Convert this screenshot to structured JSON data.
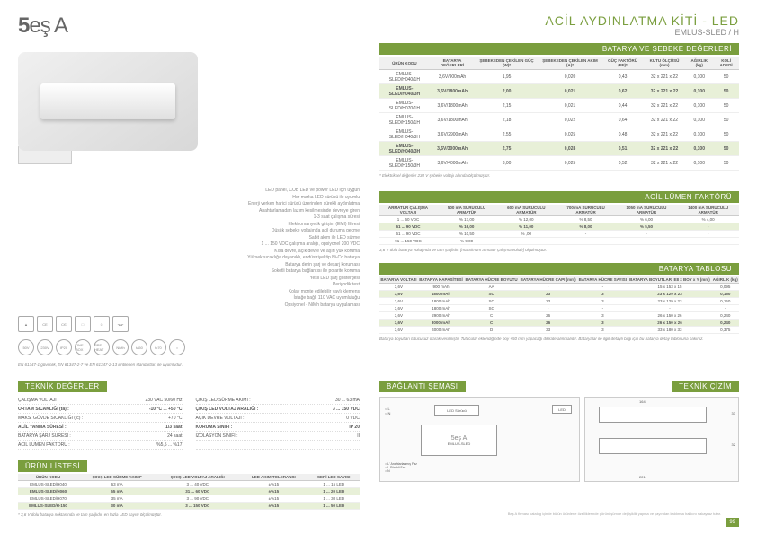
{
  "logo_prefix": "5",
  "logo_text": "eş A",
  "title": "ACİL AYDINLATMA KİTİ - LED",
  "subtitle": "EMLUS-SLED / H",
  "sections": {
    "batarya_sebeke": "BATARYA VE ŞEBEKE DEĞERLERİ",
    "lumen": "ACİL LÜMEN FAKTÖRÜ",
    "batarya_tablo": "BATARYA TABLOSU",
    "teknik": "TEKNİK DEĞERLER",
    "urun": "ÜRÜN LİSTESİ",
    "baglanti": "BAĞLANTI ŞEMASI",
    "cizim": "TEKNİK ÇİZİM"
  },
  "desc": [
    "LED panel, COB LED ve power LED için uygun",
    "Her marka LED sürücü ile uyumlu",
    "Enerji verken harici sürücü üzerinden sürekli aydınlatma",
    "Anahtarlamadan lazım kesilmesinde devreye giren",
    "1-3 saat çalışma süresi",
    "Elektromanyetik girişim (EMI) filtresi",
    "Düşük şebeke voltajında acil duruma geçme",
    "Sabit akım ile LED sürme",
    "1 ... 150 VDC çalışma aralığı, opsiyonel 200 VDC",
    "Kısa devre, açık devre ve aşırı yük koruma",
    "Yüksek sıcaklığa dayanıklı, endüstriyel tip Ni-Cd batarya",
    "Batarya derin şarj ve deşarj koruması",
    "Soketli batarya bağlantısı ile polarite koruma",
    "Yeşil LED şarj göstergesi",
    "Periyodik test",
    "Kolay monte edilebilir yaylı klemens",
    "İstağe bağlı 110 VAC uyumluluğu",
    "Opsiyonel - NiMh batarya uygulaması"
  ],
  "cert_note": "EN 61347-1 güvenlik, EN 61347-2-7 ve EN 61347-2-13 ilintilenen standartları ile uyumludur.",
  "bs_head": [
    "ÜRÜN KODU",
    "BATARYA DEĞERLERİ",
    "ŞEBEKEDEN ÇEKİLEN GÜÇ (W)*",
    "ŞEBEKEDEN ÇEKİLEN AKIM (A)*",
    "GÜÇ FAKTÖRÜ (PF)*",
    "KUTU ÖLÇÜSÜ (mm)",
    "AĞIRLIK (kg)",
    "KOLİ ADEDİ"
  ],
  "bs_rows": [
    [
      "EMLUS-SLED/H040/1H",
      "3,6V/900mAh",
      "1,95",
      "0,020",
      "0,43",
      "32 x 221 x 22",
      "0,100",
      "50"
    ],
    [
      "EMLUS-SLED/H040/3H",
      "3,6V/1800mAh",
      "2,00",
      "0,021",
      "0,62",
      "32 x 221 x 22",
      "0,100",
      "50"
    ],
    [
      "EMLUS-SLED/H070/1H",
      "3,6V/1800mAh",
      "2,15",
      "0,021",
      "0,44",
      "32 x 221 x 22",
      "0,100",
      "50"
    ],
    [
      "EMLUS-SLED/H150/1H",
      "3,6V/1800mAh",
      "2,18",
      "0,022",
      "0,64",
      "32 x 221 x 22",
      "0,100",
      "50"
    ],
    [
      "EMLUS-SLED/H040/3H",
      "3,6V/2900mAh",
      "2,55",
      "0,025",
      "0,48",
      "32 x 221 x 22",
      "0,100",
      "50"
    ],
    [
      "EMLUS-SLED/H040/3H",
      "3,6V/3000mAh",
      "2,75",
      "0,028",
      "0,51",
      "32 x 221 x 22",
      "0,100",
      "50"
    ],
    [
      "EMLUS-SLED/H150/3H",
      "3,6V/4000mAh",
      "3,00",
      "0,025",
      "0,52",
      "32 x 221 x 22",
      "0,100",
      "50"
    ]
  ],
  "bs_hl": [
    1,
    5
  ],
  "bs_note": "* Elektriksel değerler 230 V şebeke voltajı altında ölçülmüştür.",
  "lf_head": [
    "ARMATÜR ÇALIŞMA VOLTAJI",
    "500 mA SÜRÜCÜLÜ ARMATÜR",
    "600 mA SÜRÜCÜLÜ ARMATÜR",
    "700 mA SÜRÜCÜLÜ ARMATÜR",
    "1050 mA SÜRÜCÜLÜ ARMATÜR",
    "1400 mA SÜRÜCÜLÜ ARMATÜR"
  ],
  "lf_rows": [
    [
      "1 ... 60 VDC",
      "% 17,00",
      "% 12,00",
      "% 8,50",
      "% 6,00",
      "% 4,00"
    ],
    [
      "61 ... 90 VDC",
      "% 16,00",
      "% 11,00",
      "% 8,00",
      "% 5,50",
      "-"
    ],
    [
      "61 ... 90 VDC",
      "% 10,50",
      "% ,00",
      "-",
      "-",
      "-"
    ],
    [
      "91 ... 150 VDC",
      "% 9,00",
      "-",
      "-",
      "-",
      "-"
    ]
  ],
  "lf_hl": [
    1
  ],
  "lf_note": "3,6 V dolu batarya voltajında ve tam şarjlıdır. [maksimum armatür çalışma voltajı] ölçülmüştür.",
  "bt_head": [
    "BATARYA VOLTAJI",
    "BATARYA KAPASİTESİ",
    "BATARYA HÜCRE BOYUTU",
    "BATARYA HÜCRE ÇAPI (mm)",
    "BATARYA HÜCRE SAYISI",
    "BATARYA BOYUTLARI E8 x BOY x Y (mm)",
    "AĞIRLIK (kg)"
  ],
  "bt_rows": [
    [
      "3,6V",
      "900 mAh",
      "AA",
      "-",
      "-",
      "15 x 153 x 15",
      "0,095"
    ],
    [
      "3,6V",
      "1800 mAh",
      "SC",
      "23",
      "3",
      "23 x 129 x 23",
      "0,150"
    ],
    [
      "3,6V",
      "1800 mAh",
      "SC",
      "23",
      "3",
      "23 x 129 x 23",
      "0,150"
    ],
    [
      "3,6V",
      "1800 mAh",
      "SC",
      "-",
      "-",
      "-",
      "-"
    ],
    [
      "3,6V",
      "2900 mAh",
      "C",
      "26",
      "3",
      "26 x 150 x 26",
      "0,240"
    ],
    [
      "3,6V",
      "3000 mAh",
      "C",
      "26",
      "3",
      "26 x 150 x 26",
      "0,240"
    ],
    [
      "3,6V",
      "4000 mAh",
      "D",
      "33",
      "3",
      "33 x 180 x 33",
      "0,375"
    ]
  ],
  "bt_hl": [
    1,
    5
  ],
  "bt_note": "Batarya boyutları tutucusuz olarak verilmiştir. Tutucular eklendiğinde boy +50 mm yapacağı dikkate alınmalıdır. Bataryalar ile ilgili detaylı bilgi için bu batarya detay tablosuna bakınız.",
  "td_left": [
    [
      "ÇALIŞMA VOLTAJI :",
      "230 VAC 50/60 Hz"
    ],
    [
      "ORTAM SICAKLIĞI (ta) :",
      "-10 °C ... +50 °C"
    ],
    [
      "MAKS. GÖVDE SICAKLIĞI (tc) :",
      "+70 °C"
    ],
    [
      "ACİL YANMA SÜRESİ :",
      "1/3 saat"
    ],
    [
      "BATARYA ŞARJ SÜRESİ :",
      "24 saat"
    ],
    [
      "ACİL LÜMEN FAKTÖRÜ :",
      "%5,5 ... %17"
    ]
  ],
  "td_right": [
    [
      "ÇIKIŞ LED SÜRME AKIMI :",
      "30 ... 63 mA"
    ],
    [
      "ÇIKIŞ LED VOLTAJ ARALIĞI :",
      "3 ... 150 VDC"
    ],
    [
      "AÇIK DEVRE VOLTAJI :",
      "0 VDC"
    ],
    [
      "KORUMA SINIFI :",
      "IP 20"
    ],
    [
      "İZOLASYON SINIFI :",
      "II"
    ]
  ],
  "td_hl_left": [
    1,
    3
  ],
  "td_hl_right": [
    1,
    3
  ],
  "ul_head": [
    "ÜRÜN KODU",
    "ÇIKIŞ LED SÜRME AKIMI*",
    "ÇIKIŞ LED VOLTAJ ARALIĞI",
    "LED AKIM TOLERANSI",
    "SERİ LED SAYISI"
  ],
  "ul_rows": [
    [
      "EMLUS-SLED/H040",
      "63 mA",
      "3 ... 40 VDC",
      "±%15",
      "1 ... 15 LED"
    ],
    [
      "EMLUS-SLED/H060",
      "55 mA",
      "31 ... 60 VDC",
      "±%15",
      "1 ... 20 LED"
    ],
    [
      "EMLUS-SLED/H070",
      "35 mA",
      "3 ... 90 VDC",
      "±%15",
      "1 ... 30 LED"
    ],
    [
      "EMLUS-SLED/H-150",
      "30 mA",
      "3 ... 150 VDC",
      "±%15",
      "1 ... 50 LED"
    ]
  ],
  "ul_hl": [
    1,
    3
  ],
  "ul_note": "* 3,6 V dolu batarya noktasında ve tam şarjlıdır, en fazla LED sayısı ölçülmüştür.",
  "diag": {
    "led_surucu": "LED Sürücü",
    "product": "EMLUS-SLED",
    "L": "L",
    "N": "N",
    "led": "LED",
    "brand": "5eş A",
    "anahtarlanmış": "Anahtarlanmış Faz",
    "surekli": "Sürekli Faz"
  },
  "dims": {
    "w": "221",
    "h": "32",
    "d": "164",
    "d2": "33"
  },
  "footer": "Beş A firması katalog içinde bütün ürünlerle özelliklerinde görünüşümde değişiklik yapma ve yayından kaldırma hakkını sakayraz tutar.",
  "page": "99"
}
